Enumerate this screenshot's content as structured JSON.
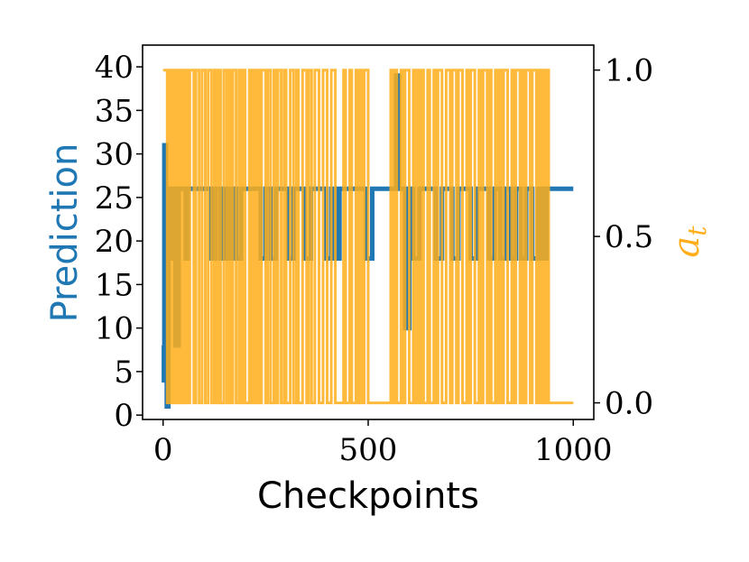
{
  "chart_data": {
    "type": "line",
    "xlabel": "Checkpoints",
    "ylabel_left": "Prediction",
    "ylabel_right_base": "a",
    "ylabel_right_sub": "t",
    "xlim": [
      -50,
      1050
    ],
    "ylim_left": [
      -0.5,
      42.5
    ],
    "ylim_right": [
      -0.05,
      1.075
    ],
    "x_ticks": [
      0,
      500,
      1000
    ],
    "x_tick_labels": [
      "0",
      "500",
      "1000"
    ],
    "y_left_ticks": [
      0,
      5,
      10,
      15,
      20,
      25,
      30,
      35,
      40
    ],
    "y_left_tick_labels": [
      "0",
      "5",
      "10",
      "15",
      "20",
      "25",
      "30",
      "35",
      "40"
    ],
    "y_right_ticks": [
      0.0,
      0.5,
      1.0
    ],
    "y_right_tick_labels": [
      "0.0",
      "0.5",
      "1.0"
    ],
    "colors": {
      "prediction": "#1f77b4",
      "a_t": "#ffae1a"
    },
    "series": [
      {
        "axis": "left",
        "x": [
          0,
          2,
          3,
          5,
          7,
          9,
          11,
          13,
          15,
          17,
          20,
          24,
          30,
          38,
          45,
          55,
          60,
          70,
          80,
          90,
          100,
          110,
          118,
          128,
          140,
          150,
          160,
          168,
          178,
          190,
          200,
          212,
          225,
          238,
          250,
          262,
          275,
          290,
          305,
          318,
          330,
          345,
          360,
          372,
          385,
          398,
          410,
          420,
          430,
          445,
          460,
          475,
          485,
          495,
          510,
          520,
          535,
          548,
          560,
          568,
          575,
          583,
          590,
          600,
          610,
          625,
          640,
          652,
          665,
          680,
          690,
          705,
          720,
          735,
          750,
          765,
          780,
          795,
          808,
          822,
          835,
          848,
          860,
          872,
          885,
          900,
          915,
          925,
          935,
          945,
          1000
        ],
        "values": [
          8,
          4,
          31,
          31,
          4,
          1,
          1,
          26,
          26,
          18,
          26,
          26,
          8,
          26,
          26,
          18,
          26,
          26,
          26,
          26,
          26,
          26,
          18,
          26,
          18,
          26,
          18,
          26,
          18,
          26,
          26,
          26,
          26,
          18,
          26,
          18,
          26,
          26,
          18,
          26,
          26,
          18,
          26,
          26,
          26,
          18,
          26,
          18,
          26,
          26,
          26,
          26,
          26,
          18,
          26,
          26,
          26,
          26,
          26,
          39,
          26,
          26,
          10,
          26,
          18,
          26,
          26,
          26,
          18,
          26,
          26,
          18,
          26,
          26,
          18,
          26,
          26,
          18,
          26,
          18,
          26,
          18,
          26,
          18,
          26,
          18,
          26,
          18,
          26,
          26,
          26
        ]
      },
      {
        "axis": "right",
        "x": [
          0,
          10,
          15,
          20,
          25,
          30,
          35,
          40,
          45,
          50,
          55,
          60,
          65,
          75,
          80,
          88,
          95,
          103,
          110,
          118,
          125,
          130,
          135,
          140,
          148,
          155,
          160,
          165,
          170,
          178,
          185,
          190,
          195,
          200,
          210,
          215,
          220,
          225,
          230,
          235,
          240,
          250,
          255,
          262,
          270,
          275,
          280,
          288,
          295,
          300,
          310,
          318,
          325,
          330,
          340,
          350,
          355,
          362,
          370,
          380,
          390,
          400,
          410,
          420,
          440,
          445,
          455,
          460,
          470,
          475,
          480,
          485,
          490,
          500,
          555,
          560,
          565,
          570,
          580,
          585,
          590,
          600,
          610,
          615,
          620,
          625,
          630,
          635,
          645,
          650,
          660,
          665,
          670,
          680,
          690,
          700,
          705,
          715,
          720,
          730,
          740,
          745,
          750,
          760,
          770,
          775,
          780,
          790,
          795,
          800,
          810,
          815,
          820,
          825,
          830,
          840,
          850,
          855,
          860,
          870,
          875,
          880,
          885,
          895,
          900,
          910,
          915,
          920,
          925,
          930,
          935,
          940,
          1000
        ],
        "values": [
          1,
          0,
          1,
          0,
          1,
          0,
          1,
          0,
          1,
          0,
          1,
          0,
          1,
          0,
          1,
          0,
          1,
          0,
          1,
          0,
          1,
          0,
          1,
          0,
          1,
          0,
          1,
          0,
          1,
          0,
          1,
          0,
          1,
          0,
          1,
          0,
          1,
          0,
          1,
          0,
          1,
          0,
          1,
          0,
          1,
          0,
          1,
          0,
          1,
          0,
          1,
          0,
          1,
          0,
          1,
          0,
          1,
          0,
          1,
          0,
          1,
          0,
          1,
          0,
          1,
          0,
          1,
          0,
          1,
          0,
          1,
          0,
          1,
          0,
          1,
          0,
          1,
          0,
          1,
          0,
          1,
          0,
          1,
          0,
          1,
          0,
          1,
          0,
          1,
          0,
          1,
          0,
          1,
          0,
          1,
          0,
          1,
          0,
          1,
          0,
          1,
          0,
          1,
          0,
          1,
          0,
          1,
          0,
          1,
          0,
          1,
          0,
          1,
          0,
          1,
          0,
          1,
          0,
          1,
          0,
          1,
          0,
          1,
          0,
          1,
          0,
          1,
          0,
          1,
          0,
          1,
          0,
          0
        ]
      }
    ]
  }
}
